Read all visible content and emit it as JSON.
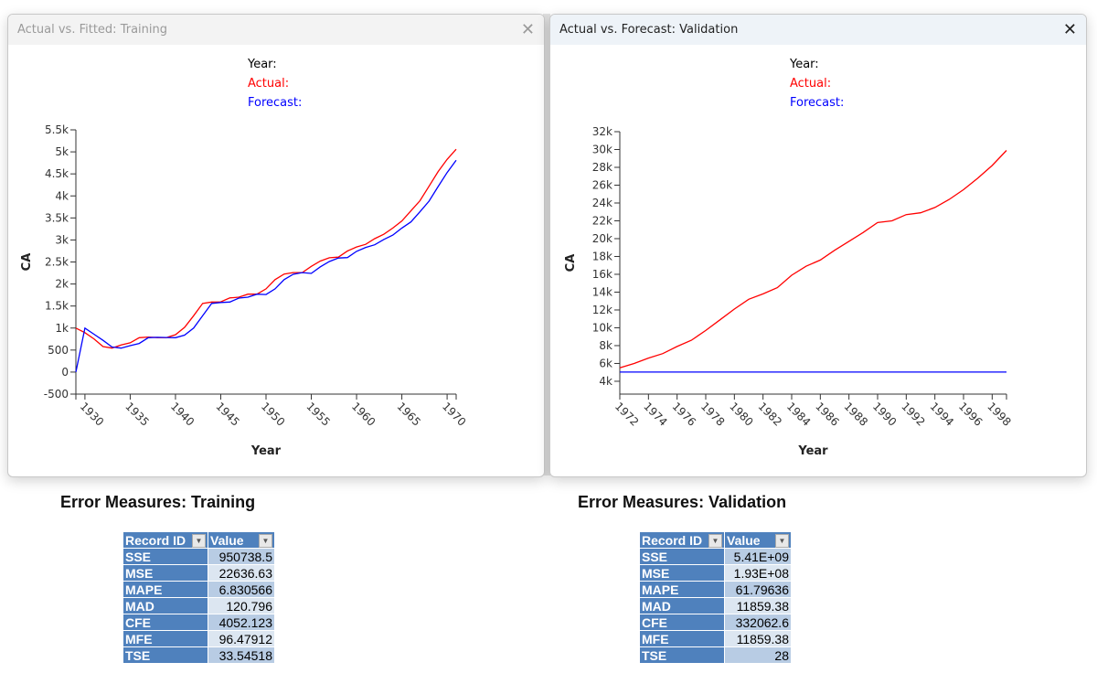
{
  "windows": [
    {
      "title": "Actual vs. Fitted: Training",
      "legend": {
        "year": "Year:",
        "actual": "Actual:",
        "forecast": "Forecast:"
      }
    },
    {
      "title": "Actual vs. Forecast: Validation",
      "legend": {
        "year": "Year:",
        "actual": "Actual:",
        "forecast": "Forecast:"
      }
    }
  ],
  "colors": {
    "actual": "#ff0000",
    "forecast": "#0000ff"
  },
  "chart_data": [
    {
      "type": "line",
      "title": "Actual vs. Fitted: Training",
      "xlabel": "Year",
      "ylabel": "CA",
      "xlim": [
        1929,
        1971
      ],
      "ylim": [
        -500,
        5500
      ],
      "xticks": [
        1930,
        1935,
        1940,
        1945,
        1950,
        1955,
        1960,
        1965,
        1970
      ],
      "yticks": [
        -500,
        0,
        500,
        1000,
        1500,
        2000,
        2500,
        3000,
        3500,
        4000,
        4500,
        5000,
        5500
      ],
      "ytick_labels": [
        "-500",
        "0",
        "500",
        "1k",
        "1.5k",
        "2k",
        "2.5k",
        "3k",
        "3.5k",
        "4k",
        "4.5k",
        "5k",
        "5.5k"
      ],
      "x": [
        1929,
        1930,
        1931,
        1932,
        1933,
        1934,
        1935,
        1936,
        1937,
        1938,
        1939,
        1940,
        1941,
        1942,
        1943,
        1944,
        1945,
        1946,
        1947,
        1948,
        1949,
        1950,
        1951,
        1952,
        1953,
        1954,
        1955,
        1956,
        1957,
        1958,
        1959,
        1960,
        1961,
        1962,
        1963,
        1964,
        1965,
        1966,
        1967,
        1968,
        1969,
        1970,
        1971
      ],
      "series": [
        {
          "name": "Actual",
          "values": [
            1000,
            895,
            755,
            580,
            545,
            615,
            665,
            780,
            795,
            783,
            783,
            850,
            1015,
            1280,
            1560,
            1590,
            1595,
            1685,
            1700,
            1770,
            1770,
            1890,
            2100,
            2225,
            2260,
            2260,
            2400,
            2520,
            2595,
            2610,
            2750,
            2840,
            2900,
            3030,
            3130,
            3270,
            3430,
            3660,
            3890,
            4220,
            4550,
            4830,
            5060
          ]
        },
        {
          "name": "Forecast",
          "values": [
            0,
            1000,
            860,
            720,
            570,
            545,
            600,
            650,
            780,
            790,
            785,
            780,
            840,
            1000,
            1280,
            1560,
            1580,
            1590,
            1680,
            1700,
            1770,
            1760,
            1890,
            2100,
            2220,
            2260,
            2240,
            2390,
            2510,
            2590,
            2600,
            2740,
            2830,
            2890,
            3010,
            3110,
            3270,
            3410,
            3640,
            3880,
            4210,
            4530,
            4810
          ]
        }
      ]
    },
    {
      "type": "line",
      "title": "Actual vs. Forecast: Validation",
      "xlabel": "Year",
      "ylabel": "CA",
      "xlim": [
        1972,
        1999
      ],
      "ylim": [
        2560,
        32000
      ],
      "xticks": [
        1972,
        1974,
        1976,
        1978,
        1980,
        1982,
        1984,
        1986,
        1988,
        1990,
        1992,
        1994,
        1996,
        1998
      ],
      "yticks": [
        4000,
        6000,
        8000,
        10000,
        12000,
        14000,
        16000,
        18000,
        20000,
        22000,
        24000,
        26000,
        28000,
        30000,
        32000
      ],
      "ytick_labels": [
        "4k",
        "6k",
        "8k",
        "10k",
        "12k",
        "14k",
        "16k",
        "18k",
        "20k",
        "22k",
        "24k",
        "26k",
        "28k",
        "30k",
        "32k"
      ],
      "x": [
        1972,
        1973,
        1974,
        1975,
        1976,
        1977,
        1978,
        1979,
        1980,
        1981,
        1982,
        1983,
        1984,
        1985,
        1986,
        1987,
        1988,
        1989,
        1990,
        1991,
        1992,
        1993,
        1994,
        1995,
        1996,
        1997,
        1998,
        1999
      ],
      "series": [
        {
          "name": "Actual",
          "values": [
            5500,
            6000,
            6600,
            7100,
            7900,
            8600,
            9700,
            10900,
            12100,
            13200,
            13800,
            14500,
            15900,
            16900,
            17600,
            18700,
            19700,
            20700,
            21800,
            22000,
            22700,
            22900,
            23500,
            24400,
            25500,
            26800,
            28200,
            29900
          ]
        },
        {
          "name": "Forecast",
          "values": [
            5030,
            5030,
            5030,
            5030,
            5030,
            5030,
            5030,
            5030,
            5030,
            5030,
            5030,
            5030,
            5030,
            5030,
            5030,
            5030,
            5030,
            5030,
            5030,
            5030,
            5030,
            5030,
            5030,
            5030,
            5030,
            5030,
            5030,
            5030
          ]
        }
      ]
    }
  ],
  "error_measures": [
    {
      "heading": "Error Measures: Training",
      "col_record": "Record ID",
      "col_value": "Value",
      "rows": [
        [
          "SSE",
          "950738.5"
        ],
        [
          "MSE",
          "22636.63"
        ],
        [
          "MAPE",
          "6.830566"
        ],
        [
          "MAD",
          "120.796"
        ],
        [
          "CFE",
          "4052.123"
        ],
        [
          "MFE",
          "96.47912"
        ],
        [
          "TSE",
          "33.54518"
        ]
      ]
    },
    {
      "heading": "Error Measures: Validation",
      "col_record": "Record ID",
      "col_value": "Value",
      "rows": [
        [
          "SSE",
          "5.41E+09"
        ],
        [
          "MSE",
          "1.93E+08"
        ],
        [
          "MAPE",
          "61.79636"
        ],
        [
          "MAD",
          "11859.38"
        ],
        [
          "CFE",
          "332062.6"
        ],
        [
          "MFE",
          "11859.38"
        ],
        [
          "TSE",
          "28"
        ]
      ]
    }
  ]
}
